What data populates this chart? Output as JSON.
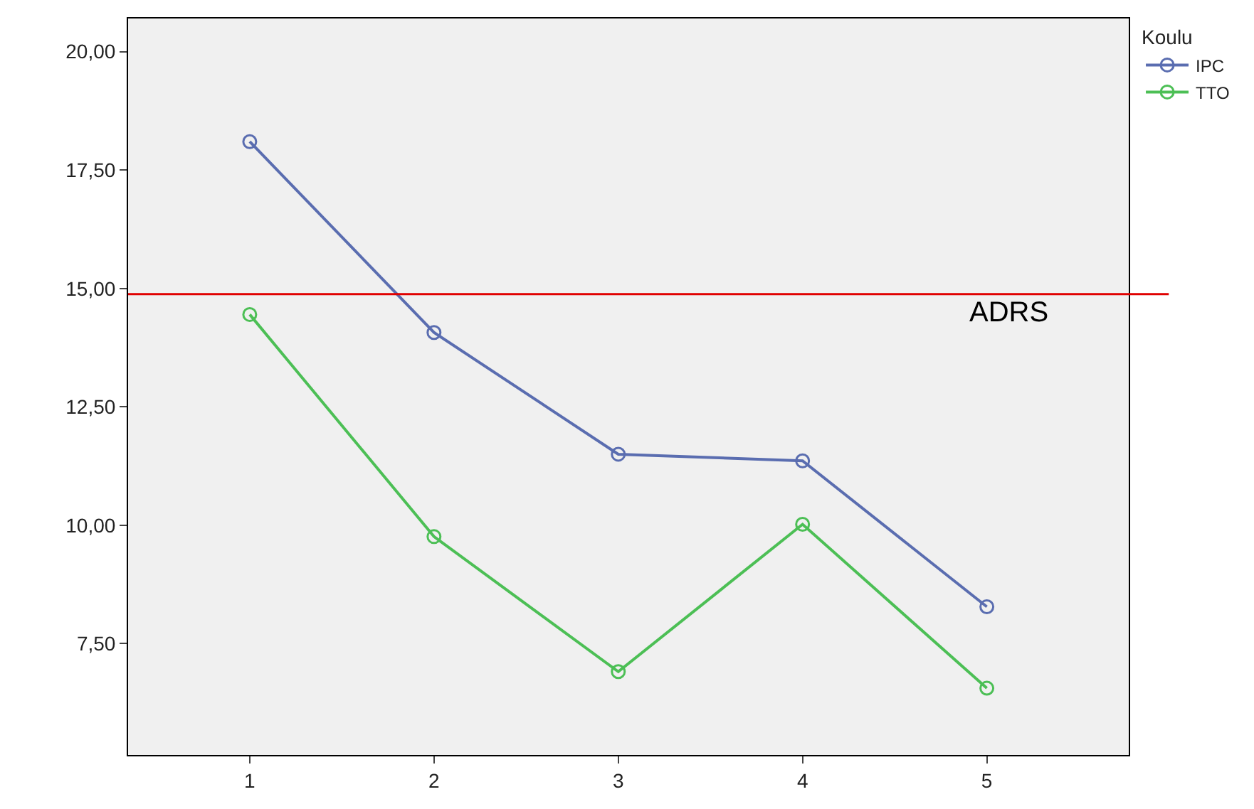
{
  "chart_data": {
    "type": "line",
    "legend_title": "Koulu",
    "legend": "top right",
    "marker": "circle",
    "grid": false,
    "x": [
      1,
      2,
      3,
      4,
      5
    ],
    "xlim": [
      0.34,
      5.77
    ],
    "xticks": [
      1,
      2,
      3,
      4,
      5
    ],
    "ylim": [
      5.15,
      20.7
    ],
    "yticks": [
      {
        "value": 7.5,
        "label": "7,50"
      },
      {
        "value": 10,
        "label": "10,00"
      },
      {
        "value": 12.5,
        "label": "12,50"
      },
      {
        "value": 15,
        "label": "15,00"
      },
      {
        "value": 17.5,
        "label": "17,50"
      },
      {
        "value": 20,
        "label": "20,00"
      }
    ],
    "series": [
      {
        "name": "IPC",
        "color": "#5a6db0",
        "values": [
          18.1,
          14.07,
          11.5,
          11.36,
          8.28
        ]
      },
      {
        "name": "TTO",
        "color": "#4cbf55",
        "values": [
          14.45,
          9.76,
          6.91,
          10.02,
          6.56
        ]
      }
    ],
    "ref_lines": [
      {
        "axis": "y",
        "value": 14.88,
        "label": "ADRS",
        "color": "#e00000"
      }
    ]
  }
}
